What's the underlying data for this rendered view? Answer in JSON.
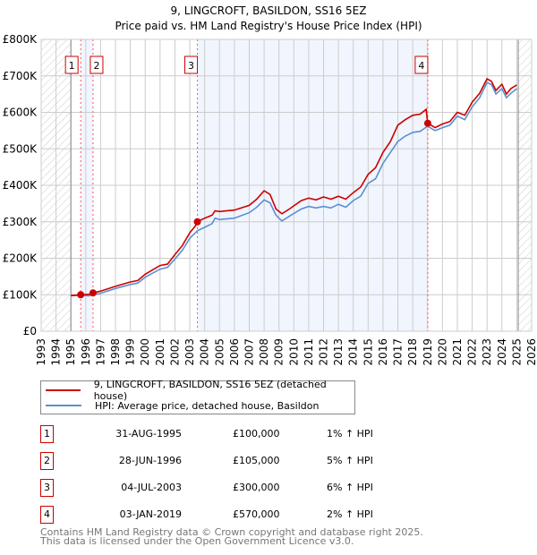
{
  "chart_data": {
    "type": "line",
    "title": "9, LINGCROFT, BASILDON, SS16 5EZ",
    "subtitle": "Price paid vs. HM Land Registry's House Price Index (HPI)",
    "xlim": [
      1993,
      2026
    ],
    "ylim": [
      0,
      800000
    ],
    "x_ticks": [
      "1993",
      "1994",
      "1995",
      "1996",
      "1997",
      "1998",
      "1999",
      "2000",
      "2001",
      "2002",
      "2003",
      "2004",
      "2005",
      "2006",
      "2007",
      "2008",
      "2009",
      "2010",
      "2011",
      "2012",
      "2013",
      "2014",
      "2015",
      "2016",
      "2017",
      "2018",
      "2019",
      "2020",
      "2021",
      "2022",
      "2023",
      "2024",
      "2025",
      "2026"
    ],
    "y_ticks": [
      {
        "v": 0,
        "label": "£0"
      },
      {
        "v": 100000,
        "label": "£100K"
      },
      {
        "v": 200000,
        "label": "£200K"
      },
      {
        "v": 300000,
        "label": "£300K"
      },
      {
        "v": 400000,
        "label": "£400K"
      },
      {
        "v": 500000,
        "label": "£500K"
      },
      {
        "v": 600000,
        "label": "£600K"
      },
      {
        "v": 700000,
        "label": "£700K"
      },
      {
        "v": 800000,
        "label": "£800K"
      }
    ],
    "grid": true,
    "data_range": [
      1995.0,
      2025.1
    ],
    "series": [
      {
        "name": "9, LINGCROFT, BASILDON, SS16 5EZ (detached house)",
        "color": "#cc0000",
        "x": [
          1995,
          1995.66,
          1996.2,
          1996.49,
          1997,
          1998,
          1999,
          1999.5,
          2000,
          2001,
          2001.5,
          2002,
          2002.5,
          2003,
          2003.5,
          2003.51,
          2004,
          2004.5,
          2004.7,
          2005,
          2006,
          2007,
          2007.5,
          2008,
          2008.4,
          2008.8,
          2009.2,
          2009.7,
          2010.5,
          2011,
          2011.5,
          2012,
          2012.5,
          2013,
          2013.5,
          2014,
          2014.5,
          2015,
          2015.5,
          2016,
          2016.5,
          2017,
          2017.5,
          2018,
          2018.5,
          2018.9,
          2019.01,
          2019.5,
          2020,
          2020.5,
          2021,
          2021.5,
          2022,
          2022.5,
          2023,
          2023.3,
          2023.6,
          2024,
          2024.3,
          2024.6,
          2025
        ],
        "y": [
          98000,
          100000,
          101000,
          105000,
          110000,
          123000,
          135000,
          139000,
          156000,
          180000,
          184000,
          210000,
          235000,
          270000,
          295000,
          300000,
          310000,
          318000,
          330000,
          328000,
          332000,
          345000,
          362000,
          385000,
          375000,
          335000,
          322000,
          335000,
          358000,
          365000,
          360000,
          368000,
          362000,
          370000,
          362000,
          380000,
          395000,
          430000,
          448000,
          490000,
          520000,
          565000,
          580000,
          592000,
          595000,
          608000,
          570000,
          558000,
          568000,
          575000,
          600000,
          592000,
          628000,
          652000,
          692000,
          685000,
          660000,
          677000,
          650000,
          665000,
          675000
        ]
      },
      {
        "name": "HPI: Average price, detached house, Basildon",
        "color": "#5b8fd4",
        "x": [
          1995,
          1995.66,
          1996.2,
          1996.49,
          1997,
          1998,
          1999,
          1999.5,
          2000,
          2001,
          2001.5,
          2002,
          2002.5,
          2003,
          2003.5,
          2004,
          2004.5,
          2004.7,
          2005,
          2006,
          2007,
          2007.5,
          2008,
          2008.4,
          2008.8,
          2009.2,
          2009.7,
          2010.5,
          2011,
          2011.5,
          2012,
          2012.5,
          2013,
          2013.5,
          2014,
          2014.5,
          2015,
          2015.5,
          2016,
          2016.5,
          2017,
          2017.5,
          2018,
          2018.5,
          2019,
          2019.5,
          2020,
          2020.5,
          2021,
          2021.5,
          2022,
          2022.5,
          2023,
          2023.3,
          2023.6,
          2024,
          2024.3,
          2024.6,
          2025
        ],
        "y": [
          97000,
          99000,
          97000,
          100000,
          104000,
          117000,
          128000,
          132000,
          148000,
          170000,
          175000,
          198000,
          222000,
          255000,
          275000,
          285000,
          295000,
          310000,
          306000,
          310000,
          325000,
          340000,
          360000,
          352000,
          318000,
          302000,
          315000,
          335000,
          342000,
          338000,
          342000,
          338000,
          348000,
          340000,
          358000,
          370000,
          405000,
          418000,
          460000,
          490000,
          520000,
          535000,
          545000,
          548000,
          562000,
          550000,
          558000,
          565000,
          590000,
          580000,
          615000,
          640000,
          682000,
          676000,
          650000,
          665000,
          640000,
          652000,
          665000
        ]
      }
    ],
    "shaded_periods": [
      [
        1995.66,
        1996.49
      ],
      [
        2003.5,
        2019.01
      ]
    ],
    "sales": [
      {
        "n": "1",
        "x": 1995.66,
        "y": 100000,
        "date": "31-AUG-1995",
        "price": "£100,000",
        "hpi": "1% ↑ HPI"
      },
      {
        "n": "2",
        "x": 1996.49,
        "y": 105000,
        "date": "28-JUN-1996",
        "price": "£105,000",
        "hpi": "5% ↑ HPI"
      },
      {
        "n": "3",
        "x": 2003.51,
        "y": 300000,
        "date": "04-JUL-2003",
        "price": "£300,000",
        "hpi": "6% ↑ HPI"
      },
      {
        "n": "4",
        "x": 2019.01,
        "y": 570000,
        "date": "03-JAN-2019",
        "price": "£570,000",
        "hpi": "2% ↑ HPI"
      }
    ],
    "legend_placement": "below"
  },
  "footer": {
    "line1": "Contains HM Land Registry data © Crown copyright and database right 2025.",
    "line2": "This data is licensed under the Open Government Licence v3.0."
  }
}
